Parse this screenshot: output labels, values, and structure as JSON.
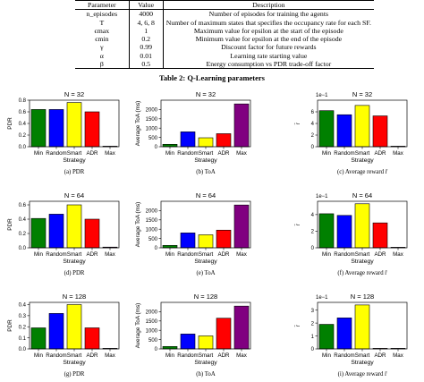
{
  "table": {
    "headers": [
      "Parameter",
      "Value",
      "Description"
    ],
    "rows": [
      [
        "n_episodes",
        "4000",
        "Number of episodes for training the agents"
      ],
      [
        "T",
        "4, 6, 8",
        "Number of maximum states that specifies the occupancy rate for each SF."
      ],
      [
        "ϵmax",
        "1",
        "Maximum value for epsilon at the start of the episode"
      ],
      [
        "ϵmin",
        "0.2",
        "Minimum value for epsilon at the end of the episode"
      ],
      [
        "γ",
        "0.99",
        "Discount factor for future rewards"
      ],
      [
        "α",
        "0.01",
        "Learning rate starting value"
      ],
      [
        "β",
        "0.5",
        "Energy consumption vs PDR trade-off factor"
      ]
    ],
    "caption": "Table 2: Q-Learning parameters"
  },
  "colors": {
    "Min": "#008000",
    "Random": "#0000ff",
    "Smart": "#ffff00",
    "ADR": "#ff0000",
    "Max": "#800080"
  },
  "chart_data": [
    {
      "type": "bar",
      "title": "N = 32",
      "xlabel": "Strategy",
      "ylabel": "PDR",
      "caption": "(a) PDR",
      "categories": [
        "Min",
        "Random",
        "Smart",
        "ADR",
        "Max"
      ],
      "values": [
        0.64,
        0.64,
        0.76,
        0.6,
        0.0
      ],
      "ylim": [
        0,
        0.8
      ],
      "yticks": [
        "0.0",
        "0.2",
        "0.4",
        "0.6",
        "0.8"
      ],
      "ytick_values": [
        0,
        0.2,
        0.4,
        0.6,
        0.8
      ],
      "offset_label": ""
    },
    {
      "type": "bar",
      "title": "N = 32",
      "xlabel": "Strategy",
      "ylabel": "Average ToA (ms)",
      "caption": "(b) ToA",
      "categories": [
        "Min",
        "Random",
        "Smart",
        "ADR",
        "Max"
      ],
      "values": [
        130,
        800,
        480,
        700,
        2300
      ],
      "ylim": [
        0,
        2500
      ],
      "yticks": [
        "0",
        "500",
        "1000",
        "1500",
        "2000"
      ],
      "ytick_values": [
        0,
        500,
        1000,
        1500,
        2000
      ],
      "offset_label": ""
    },
    {
      "type": "bar",
      "title": "N = 32",
      "xlabel": "Strategy",
      "ylabel": "r̄",
      "caption": "(c) Average reward r̄",
      "categories": [
        "Min",
        "Random",
        "Smart",
        "ADR",
        "Max"
      ],
      "values": [
        6.2,
        5.5,
        7.1,
        5.3,
        0.0
      ],
      "ylim": [
        0,
        8
      ],
      "yticks": [
        "0",
        "2",
        "4",
        "6"
      ],
      "ytick_values": [
        0,
        2,
        4,
        6
      ],
      "offset_label": "1e−1"
    },
    {
      "type": "bar",
      "title": "N = 64",
      "xlabel": "Strategy",
      "ylabel": "PDR",
      "caption": "(d) PDR",
      "categories": [
        "Min",
        "Random",
        "Smart",
        "ADR",
        "Max"
      ],
      "values": [
        0.41,
        0.47,
        0.6,
        0.4,
        0.01
      ],
      "ylim": [
        0,
        0.65
      ],
      "yticks": [
        "0.0",
        "0.2",
        "0.4",
        "0.6"
      ],
      "ytick_values": [
        0,
        0.2,
        0.4,
        0.6
      ],
      "offset_label": ""
    },
    {
      "type": "bar",
      "title": "N = 64",
      "xlabel": "Strategy",
      "ylabel": "Average ToA (ms)",
      "caption": "(e) ToA",
      "categories": [
        "Min",
        "Random",
        "Smart",
        "ADR",
        "Max"
      ],
      "values": [
        130,
        800,
        700,
        950,
        2300
      ],
      "ylim": [
        0,
        2500
      ],
      "yticks": [
        "0",
        "500",
        "1000",
        "1500",
        "2000"
      ],
      "ytick_values": [
        0,
        500,
        1000,
        1500,
        2000
      ],
      "offset_label": ""
    },
    {
      "type": "bar",
      "title": "N = 64",
      "xlabel": "Strategy",
      "ylabel": "r̄",
      "caption": "(f) Average reward r̄",
      "categories": [
        "Min",
        "Random",
        "Smart",
        "ADR",
        "Max"
      ],
      "values": [
        4.1,
        3.9,
        5.3,
        3.0,
        0.0
      ],
      "ylim": [
        0,
        5.6
      ],
      "yticks": [
        "0",
        "2",
        "4"
      ],
      "ytick_values": [
        0,
        2,
        4
      ],
      "offset_label": "1e−1"
    },
    {
      "type": "bar",
      "title": "N = 128",
      "xlabel": "Strategy",
      "ylabel": "PDR",
      "caption": "(g) PDR",
      "categories": [
        "Min",
        "Random",
        "Smart",
        "ADR",
        "Max"
      ],
      "values": [
        0.19,
        0.32,
        0.4,
        0.19,
        0.0
      ],
      "ylim": [
        0,
        0.42
      ],
      "yticks": [
        "0.0",
        "0.1",
        "0.2",
        "0.3",
        "0.4"
      ],
      "ytick_values": [
        0,
        0.1,
        0.2,
        0.3,
        0.4
      ],
      "offset_label": ""
    },
    {
      "type": "bar",
      "title": "N = 128",
      "xlabel": "Strategy",
      "ylabel": "Average ToA (ms)",
      "caption": "(h) ToA",
      "categories": [
        "Min",
        "Random",
        "Smart",
        "ADR",
        "Max"
      ],
      "values": [
        130,
        800,
        700,
        1650,
        2300
      ],
      "ylim": [
        0,
        2500
      ],
      "yticks": [
        "0",
        "500",
        "1000",
        "1500",
        "2000"
      ],
      "ytick_values": [
        0,
        500,
        1000,
        1500,
        2000
      ],
      "offset_label": ""
    },
    {
      "type": "bar",
      "title": "N = 128",
      "xlabel": "Strategy",
      "ylabel": "r̄",
      "caption": "(i) Average reward r̄",
      "categories": [
        "Min",
        "Random",
        "Smart",
        "ADR",
        "Max"
      ],
      "values": [
        1.9,
        2.4,
        3.4,
        0.0,
        0.0
      ],
      "ylim": [
        0,
        3.6
      ],
      "yticks": [
        "0",
        "1",
        "2",
        "3"
      ],
      "ytick_values": [
        0,
        1,
        2,
        3
      ],
      "offset_label": "1e−1"
    }
  ]
}
